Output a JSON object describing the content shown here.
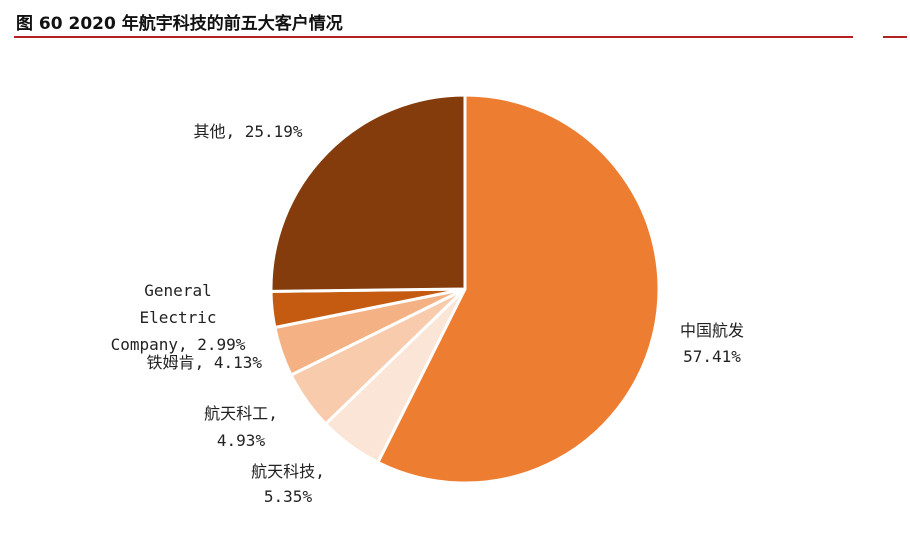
{
  "title": "图 60 2020 年航宇科技的前五大客户情况",
  "chart_data": {
    "type": "pie",
    "title": "",
    "slices": [
      {
        "label": "中国航发",
        "value": 57.41,
        "value_text": "57.41%",
        "color": "#ED7D31"
      },
      {
        "label": "航天科技",
        "value": 5.35,
        "value_text": "5.35%",
        "color": "#FBE5D6"
      },
      {
        "label": "航天科工",
        "value": 4.93,
        "value_text": "4.93%",
        "color": "#F8CBAD"
      },
      {
        "label": "铁姆肯",
        "value": 4.13,
        "value_text": "4.13%",
        "color": "#F4B183"
      },
      {
        "label": "General Electric Company",
        "value": 2.99,
        "value_text": "2.99%",
        "color": "#C55A11"
      },
      {
        "label": "其他",
        "value": 25.19,
        "value_text": "25.19%",
        "color": "#843C0C"
      }
    ]
  }
}
